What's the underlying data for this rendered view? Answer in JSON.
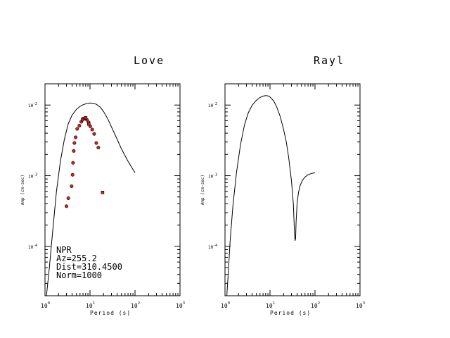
{
  "chart_data": [
    {
      "type": "line",
      "title": "Love",
      "xlabel": "Period (s)",
      "ylabel": "Amp (cm-sec)",
      "xscale": "log",
      "yscale": "log",
      "xlim": [
        1,
        1000
      ],
      "ylim": [
        2e-05,
        0.02
      ],
      "xticks": [
        {
          "base": "10",
          "exp": "0"
        },
        {
          "base": "10",
          "exp": "1"
        },
        {
          "base": "10",
          "exp": "2"
        },
        {
          "base": "10",
          "exp": "3"
        }
      ],
      "yticks": [
        {
          "base": "10",
          "exp": "-4"
        },
        {
          "base": "10",
          "exp": "-3"
        },
        {
          "base": "10",
          "exp": "-2"
        }
      ],
      "series": [
        {
          "kind": "line",
          "x": [
            1.08,
            1.25,
            1.5,
            1.8,
            2.2,
            2.7,
            3.3,
            4,
            5,
            6,
            7,
            8,
            9,
            10,
            12,
            14,
            17,
            20,
            25,
            30,
            40,
            50,
            70,
            100
          ],
          "y": [
            2e-05,
            5e-05,
            0.00018,
            0.0006,
            0.0016,
            0.0033,
            0.0055,
            0.0072,
            0.0087,
            0.0096,
            0.0101,
            0.0104,
            0.0106,
            0.0107,
            0.0106,
            0.0102,
            0.0093,
            0.0081,
            0.0063,
            0.0049,
            0.0033,
            0.0024,
            0.0016,
            0.0011
          ]
        },
        {
          "kind": "scatter",
          "marker": "circle",
          "x": [
            3,
            3.3,
            3.9,
            4.1,
            4.2,
            4.35,
            4.5,
            4.8,
            5.2,
            5.8,
            6.4,
            7,
            7.7,
            8.5,
            9.3,
            10.1,
            11.2,
            12.4,
            13.8,
            15.3
          ],
          "y": [
            0.00037,
            0.00048,
            0.00071,
            0.00103,
            0.00152,
            0.00224,
            0.0029,
            0.0035,
            0.0046,
            0.0051,
            0.0058,
            0.0064,
            0.0065,
            0.0062,
            0.0057,
            0.005,
            0.0045,
            0.0039,
            0.0029,
            0.0025
          ]
        },
        {
          "kind": "scatter",
          "marker": "square",
          "x": [
            6.8,
            8,
            9.4,
            19
          ],
          "y": [
            0.0062,
            0.0066,
            0.0054,
            0.00058
          ]
        }
      ],
      "annotations": [
        "NPR",
        "Az=255.2",
        "Dist=310.4500",
        "Norm=1000"
      ]
    },
    {
      "type": "line",
      "title": "Rayl",
      "xlabel": "Period (s)",
      "ylabel": "Amp (cm-sec)",
      "xscale": "log",
      "yscale": "log",
      "xlim": [
        1,
        1000
      ],
      "ylim": [
        2e-05,
        0.02
      ],
      "xticks": [
        {
          "base": "10",
          "exp": "0"
        },
        {
          "base": "10",
          "exp": "1"
        },
        {
          "base": "10",
          "exp": "2"
        },
        {
          "base": "10",
          "exp": "3"
        }
      ],
      "yticks": [
        {
          "base": "10",
          "exp": "-4"
        },
        {
          "base": "10",
          "exp": "-3"
        },
        {
          "base": "10",
          "exp": "-2"
        }
      ],
      "series": [
        {
          "kind": "line",
          "x": [
            1,
            1.1,
            1.2,
            1.3,
            1.5,
            1.8,
            2.2,
            2.7,
            3.3,
            4,
            5,
            6,
            7,
            8,
            9,
            10,
            12,
            14,
            17,
            20,
            23,
            26,
            30,
            33,
            35,
            36,
            37,
            38,
            40,
            43,
            47,
            52,
            60,
            70,
            85,
            100
          ],
          "y": [
            2e-05,
            2e-05,
            5e-05,
            0.00012,
            0.00038,
            0.0011,
            0.0027,
            0.0052,
            0.0078,
            0.0099,
            0.0117,
            0.0128,
            0.0134,
            0.0136,
            0.0135,
            0.013,
            0.0115,
            0.0095,
            0.0068,
            0.0045,
            0.003,
            0.0018,
            0.00085,
            0.0004,
            0.00016,
            0.00012,
            0.00013,
            0.00022,
            0.0004,
            0.00058,
            0.00073,
            0.00085,
            0.00096,
            0.00103,
            0.00108,
            0.0011
          ]
        }
      ]
    }
  ]
}
